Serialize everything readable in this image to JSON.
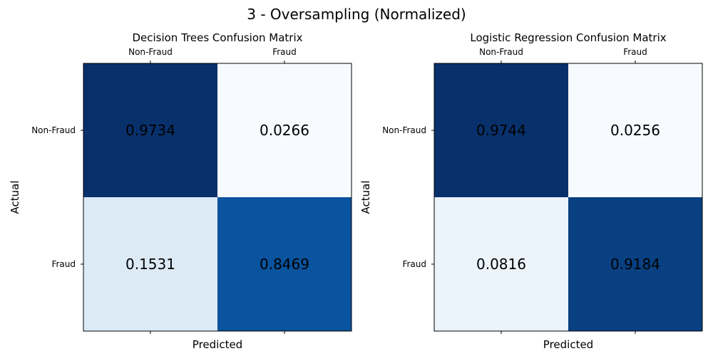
{
  "suptitle": "3 - Oversampling (Normalized)",
  "chart_data": [
    {
      "type": "heatmap",
      "title": "Decision Trees Confusion Matrix",
      "xlabel": "Predicted",
      "ylabel": "Actual",
      "x_categories": [
        "Non-Fraud",
        "Fraud"
      ],
      "y_categories": [
        "Non-Fraud",
        "Fraud"
      ],
      "values": [
        [
          0.9734,
          0.0266
        ],
        [
          0.1531,
          0.8469
        ]
      ],
      "value_labels": [
        [
          "0.9734",
          "0.0266"
        ],
        [
          "0.1531",
          "0.8469"
        ]
      ],
      "colormap": "Blues",
      "grid": false,
      "xticks_position": "top"
    },
    {
      "type": "heatmap",
      "title": "Logistic Regression Confusion Matrix",
      "xlabel": "Predicted",
      "ylabel": "Actual",
      "x_categories": [
        "Non-Fraud",
        "Fraud"
      ],
      "y_categories": [
        "Non-Fraud",
        "Fraud"
      ],
      "values": [
        [
          0.9744,
          0.0256
        ],
        [
          0.0816,
          0.9184
        ]
      ],
      "value_labels": [
        [
          "0.9744",
          "0.0256"
        ],
        [
          "0.0816",
          "0.9184"
        ]
      ],
      "colormap": "Blues",
      "grid": false,
      "xticks_position": "top"
    }
  ]
}
